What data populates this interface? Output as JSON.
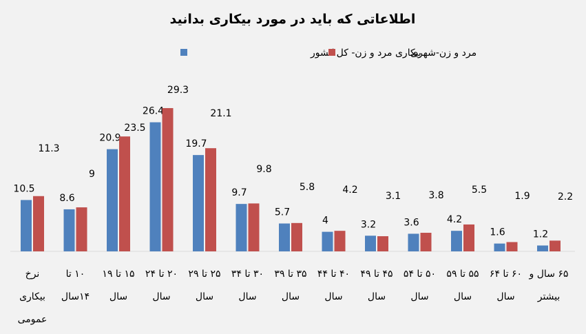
{
  "chart_data": {
    "type": "bar",
    "title": "اطلاعاتی که باید در مورد بیکاری بدانید",
    "xlabel": "",
    "ylabel": "",
    "ylim": [
      0,
      30
    ],
    "grid": false,
    "legend_position": "top",
    "categories": [
      [
        "نرخ",
        "بیکاری",
        "عمومی"
      ],
      [
        "۱۰ تا",
        "۱۴سال"
      ],
      [
        "۱۵ تا ۱۹",
        "سال"
      ],
      [
        "۲۰ تا ۲۴",
        "سال"
      ],
      [
        "۲۵ تا ۲۹",
        "سال"
      ],
      [
        "۳۰ تا ۳۴",
        "سال"
      ],
      [
        "۳۵ تا ۳۹",
        "سال"
      ],
      [
        "۴۰ تا ۴۴",
        "سال"
      ],
      [
        "۴۵ تا ۴۹",
        "سال"
      ],
      [
        "۵۰ تا ۵۴",
        "سال"
      ],
      [
        "۵۵ تا ۵۹",
        "سال"
      ],
      [
        "۶۰ تا ۶۴",
        "سال"
      ],
      [
        "۶۵ سال و",
        "بیشتر"
      ]
    ],
    "series": [
      {
        "name": "بیکاری مرد و زن- کل کشور",
        "color": "#4f81bd",
        "values": [
          10.5,
          8.6,
          20.9,
          26.4,
          19.7,
          9.7,
          5.7,
          4,
          3.2,
          3.6,
          4.2,
          1.6,
          1.2
        ],
        "labels": [
          "10.5",
          "8.6",
          "20.9",
          "26.4",
          "19.7",
          "9.7",
          "5.7",
          "4",
          "3.2",
          "3.6",
          "4.2",
          "1.6",
          "1.2"
        ]
      },
      {
        "name": "مرد و زن-شهری",
        "color": "#c0504d",
        "values": [
          11.3,
          9,
          23.5,
          29.3,
          21.1,
          9.8,
          5.8,
          4.2,
          3.1,
          3.8,
          5.5,
          1.9,
          2.2
        ],
        "labels": [
          "11.3",
          "9",
          "23.5",
          "29.3",
          "21.1",
          "9.8",
          "5.8",
          "4.2",
          "3.1",
          "3.8",
          "5.5",
          "1.9",
          "2.2"
        ]
      }
    ]
  }
}
